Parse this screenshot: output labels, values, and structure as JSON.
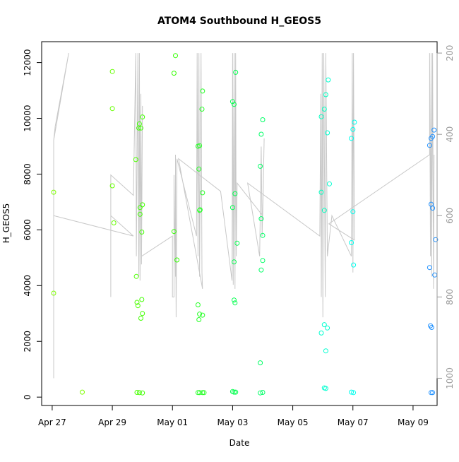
{
  "chart_data": {
    "type": "scatter",
    "title": "ATOM4 Southbound H_GEOS5",
    "xlabel": "Date",
    "ylabel": "H_GEOS5",
    "x_ticks": [
      "Apr 27",
      "Apr 29",
      "May 01",
      "May 03",
      "May 05",
      "May 07",
      "May 09"
    ],
    "y_ticks": [
      0,
      2000,
      4000,
      6000,
      8000,
      10000,
      12000
    ],
    "y2_ticks": [
      200,
      400,
      600,
      800,
      1000
    ],
    "xlim": [
      -0.35,
      12.8
    ],
    "ylim": [
      -300,
      12750
    ],
    "y2lim": [
      1067,
      172
    ],
    "grid": false,
    "colors": {
      "apr": "#7cfc00",
      "late_apr": "#00ff40",
      "may_mid": "#00ff7f",
      "may_late": "#00ffff",
      "may_end": "#1e90ff",
      "pressure_line": "#c8c8c8"
    },
    "points": [
      {
        "x": 0.05,
        "y": 7350,
        "c": "#7fff00"
      },
      {
        "x": 0.05,
        "y": 3730,
        "c": "#7fff00"
      },
      {
        "x": 1.0,
        "y": 180,
        "c": "#7fff00"
      },
      {
        "x": 2.0,
        "y": 11680,
        "c": "#66ff00"
      },
      {
        "x": 2.0,
        "y": 10350,
        "c": "#66ff00"
      },
      {
        "x": 2.0,
        "y": 7580,
        "c": "#66ff00"
      },
      {
        "x": 2.05,
        "y": 6250,
        "c": "#66ff00"
      },
      {
        "x": 2.78,
        "y": 8520,
        "c": "#4dff00"
      },
      {
        "x": 2.8,
        "y": 4330,
        "c": "#4dff00"
      },
      {
        "x": 2.82,
        "y": 3400,
        "c": "#4dff00"
      },
      {
        "x": 2.85,
        "y": 3280,
        "c": "#4dff00"
      },
      {
        "x": 2.82,
        "y": 170,
        "c": "#4dff00"
      },
      {
        "x": 2.88,
        "y": 9650,
        "c": "#40ff00"
      },
      {
        "x": 2.9,
        "y": 9800,
        "c": "#40ff00"
      },
      {
        "x": 2.95,
        "y": 9650,
        "c": "#40ff00"
      },
      {
        "x": 2.92,
        "y": 6800,
        "c": "#40ff00"
      },
      {
        "x": 2.92,
        "y": 6560,
        "c": "#40ff00"
      },
      {
        "x": 2.95,
        "y": 2830,
        "c": "#40ff00"
      },
      {
        "x": 2.9,
        "y": 160,
        "c": "#40ff00"
      },
      {
        "x": 3.0,
        "y": 10050,
        "c": "#40ff00"
      },
      {
        "x": 3.0,
        "y": 6900,
        "c": "#40ff00"
      },
      {
        "x": 2.98,
        "y": 5920,
        "c": "#40ff00"
      },
      {
        "x": 2.98,
        "y": 3500,
        "c": "#40ff00"
      },
      {
        "x": 3.0,
        "y": 3000,
        "c": "#40ff00"
      },
      {
        "x": 3.0,
        "y": 150,
        "c": "#40ff00"
      },
      {
        "x": 4.1,
        "y": 12250,
        "c": "#33ff00"
      },
      {
        "x": 4.05,
        "y": 11620,
        "c": "#33ff00"
      },
      {
        "x": 4.05,
        "y": 5940,
        "c": "#33ff00"
      },
      {
        "x": 4.15,
        "y": 4920,
        "c": "#33ff00"
      },
      {
        "x": 4.85,
        "y": 9000,
        "c": "#26ff26"
      },
      {
        "x": 4.9,
        "y": 9020,
        "c": "#26ff26"
      },
      {
        "x": 4.88,
        "y": 8180,
        "c": "#26ff26"
      },
      {
        "x": 4.9,
        "y": 6700,
        "c": "#26ff26"
      },
      {
        "x": 4.92,
        "y": 6720,
        "c": "#26ff26"
      },
      {
        "x": 4.85,
        "y": 3310,
        "c": "#26ff26"
      },
      {
        "x": 4.88,
        "y": 2780,
        "c": "#26ff26"
      },
      {
        "x": 4.9,
        "y": 2980,
        "c": "#26ff26"
      },
      {
        "x": 4.85,
        "y": 160,
        "c": "#26ff26"
      },
      {
        "x": 4.9,
        "y": 160,
        "c": "#26ff26"
      },
      {
        "x": 5.0,
        "y": 10980,
        "c": "#26ff26"
      },
      {
        "x": 4.98,
        "y": 10330,
        "c": "#26ff26"
      },
      {
        "x": 5.0,
        "y": 7330,
        "c": "#26ff26"
      },
      {
        "x": 5.0,
        "y": 2940,
        "c": "#26ff26"
      },
      {
        "x": 5.0,
        "y": 160,
        "c": "#26ff26"
      },
      {
        "x": 5.05,
        "y": 160,
        "c": "#26ff26"
      },
      {
        "x": 6.0,
        "y": 10600,
        "c": "#00ff4d"
      },
      {
        "x": 6.05,
        "y": 10500,
        "c": "#00ff4d"
      },
      {
        "x": 6.1,
        "y": 11650,
        "c": "#00ff4d"
      },
      {
        "x": 6.08,
        "y": 7300,
        "c": "#00ff4d"
      },
      {
        "x": 6.0,
        "y": 6800,
        "c": "#00ff4d"
      },
      {
        "x": 6.15,
        "y": 5520,
        "c": "#00ff4d"
      },
      {
        "x": 6.05,
        "y": 4850,
        "c": "#00ff4d"
      },
      {
        "x": 6.05,
        "y": 3480,
        "c": "#00ff4d"
      },
      {
        "x": 6.08,
        "y": 3380,
        "c": "#00ff4d"
      },
      {
        "x": 6.0,
        "y": 200,
        "c": "#00ff4d"
      },
      {
        "x": 6.05,
        "y": 180,
        "c": "#00ff4d"
      },
      {
        "x": 6.1,
        "y": 180,
        "c": "#00ff4d"
      },
      {
        "x": 6.95,
        "y": 9430,
        "c": "#00ff66"
      },
      {
        "x": 7.0,
        "y": 9950,
        "c": "#00ff66"
      },
      {
        "x": 6.92,
        "y": 8280,
        "c": "#00ff66"
      },
      {
        "x": 6.95,
        "y": 6400,
        "c": "#00ff66"
      },
      {
        "x": 7.0,
        "y": 5800,
        "c": "#00ff66"
      },
      {
        "x": 7.0,
        "y": 4900,
        "c": "#00ff66"
      },
      {
        "x": 6.95,
        "y": 4560,
        "c": "#00ff66"
      },
      {
        "x": 6.92,
        "y": 1230,
        "c": "#00ff66"
      },
      {
        "x": 6.92,
        "y": 150,
        "c": "#00ff66"
      },
      {
        "x": 7.0,
        "y": 170,
        "c": "#00ff66"
      },
      {
        "x": 8.95,
        "y": 10060,
        "c": "#00ffc0"
      },
      {
        "x": 9.05,
        "y": 10330,
        "c": "#00ffc0"
      },
      {
        "x": 9.1,
        "y": 10850,
        "c": "#00ffc0"
      },
      {
        "x": 9.18,
        "y": 11380,
        "c": "#00ffd0"
      },
      {
        "x": 9.15,
        "y": 9480,
        "c": "#00ffd0"
      },
      {
        "x": 8.95,
        "y": 7350,
        "c": "#00ffc0"
      },
      {
        "x": 9.22,
        "y": 7650,
        "c": "#00ffd0"
      },
      {
        "x": 9.05,
        "y": 6700,
        "c": "#00ffc0"
      },
      {
        "x": 9.05,
        "y": 2600,
        "c": "#00ffd0"
      },
      {
        "x": 8.95,
        "y": 2300,
        "c": "#00ffd0"
      },
      {
        "x": 9.15,
        "y": 2480,
        "c": "#00ffd0"
      },
      {
        "x": 9.1,
        "y": 1660,
        "c": "#00ffd0"
      },
      {
        "x": 9.05,
        "y": 330,
        "c": "#00ffd0"
      },
      {
        "x": 9.1,
        "y": 310,
        "c": "#00ffd0"
      },
      {
        "x": 9.95,
        "y": 9280,
        "c": "#00ffee"
      },
      {
        "x": 10.0,
        "y": 9600,
        "c": "#00ffee"
      },
      {
        "x": 10.05,
        "y": 9860,
        "c": "#00ffee"
      },
      {
        "x": 10.0,
        "y": 6650,
        "c": "#00ffee"
      },
      {
        "x": 9.95,
        "y": 5540,
        "c": "#00ffee"
      },
      {
        "x": 10.02,
        "y": 4740,
        "c": "#00ffee"
      },
      {
        "x": 9.95,
        "y": 180,
        "c": "#00ffee"
      },
      {
        "x": 10.02,
        "y": 160,
        "c": "#00ffee"
      },
      {
        "x": 12.55,
        "y": 9030,
        "c": "#1e90ff"
      },
      {
        "x": 12.6,
        "y": 9280,
        "c": "#1e90ff"
      },
      {
        "x": 12.65,
        "y": 9350,
        "c": "#1e90ff"
      },
      {
        "x": 12.7,
        "y": 9580,
        "c": "#1e90ff"
      },
      {
        "x": 12.6,
        "y": 6920,
        "c": "#1e90ff"
      },
      {
        "x": 12.65,
        "y": 6780,
        "c": "#1e90ff"
      },
      {
        "x": 12.75,
        "y": 5650,
        "c": "#1e90ff"
      },
      {
        "x": 12.55,
        "y": 4650,
        "c": "#1e90ff"
      },
      {
        "x": 12.72,
        "y": 4380,
        "c": "#1e90ff"
      },
      {
        "x": 12.58,
        "y": 2560,
        "c": "#1e90ff"
      },
      {
        "x": 12.62,
        "y": 2500,
        "c": "#1e90ff"
      },
      {
        "x": 12.6,
        "y": 160,
        "c": "#1e90ff"
      },
      {
        "x": 12.65,
        "y": 160,
        "c": "#1e90ff"
      }
    ],
    "pressure_path": [
      [
        0.05,
        950
      ],
      [
        0.05,
        415
      ],
      [
        0.1,
        380
      ],
      [
        0.55,
        200
      ],
      [
        0.05,
        415
      ],
      [
        0.05,
        1000
      ],
      [
        0.05,
        600
      ],
      [
        2.7,
        650
      ],
      [
        1.95,
        600
      ],
      [
        1.95,
        800
      ],
      [
        1.95,
        500
      ],
      [
        2.7,
        550
      ],
      [
        2.78,
        200
      ],
      [
        2.8,
        700
      ],
      [
        2.85,
        200
      ],
      [
        2.88,
        750
      ],
      [
        2.9,
        200
      ],
      [
        2.92,
        760
      ],
      [
        2.95,
        300
      ],
      [
        2.97,
        720
      ],
      [
        3.0,
        330
      ],
      [
        2.97,
        700
      ],
      [
        4.0,
        650
      ],
      [
        4.0,
        800
      ],
      [
        4.05,
        800
      ],
      [
        4.05,
        500
      ],
      [
        4.1,
        750
      ],
      [
        4.1,
        450
      ],
      [
        4.12,
        850
      ],
      [
        4.15,
        460
      ],
      [
        4.8,
        650
      ],
      [
        4.82,
        200
      ],
      [
        4.85,
        700
      ],
      [
        4.88,
        200
      ],
      [
        4.9,
        750
      ],
      [
        4.95,
        200
      ],
      [
        4.98,
        740
      ],
      [
        5.0,
        780
      ],
      [
        4.2,
        460
      ],
      [
        5.6,
        540
      ],
      [
        5.98,
        760
      ],
      [
        6.0,
        200
      ],
      [
        6.02,
        770
      ],
      [
        6.05,
        200
      ],
      [
        6.08,
        780
      ],
      [
        6.1,
        200
      ],
      [
        6.12,
        700
      ],
      [
        6.15,
        520
      ],
      [
        7.0,
        600
      ],
      [
        7.05,
        410
      ],
      [
        6.98,
        650
      ],
      [
        6.95,
        430
      ],
      [
        6.9,
        700
      ],
      [
        6.5,
        520
      ],
      [
        8.9,
        650
      ],
      [
        8.93,
        300
      ],
      [
        8.95,
        800
      ],
      [
        8.98,
        200
      ],
      [
        9.0,
        850
      ],
      [
        9.03,
        200
      ],
      [
        9.08,
        800
      ],
      [
        9.1,
        200
      ],
      [
        9.15,
        700
      ],
      [
        9.3,
        600
      ],
      [
        9.95,
        700
      ],
      [
        9.98,
        200
      ],
      [
        10.0,
        740
      ],
      [
        10.02,
        200
      ],
      [
        10.05,
        660
      ],
      [
        9.2,
        620
      ],
      [
        12.55,
        450
      ],
      [
        12.55,
        200
      ],
      [
        12.58,
        700
      ],
      [
        12.6,
        200
      ],
      [
        12.62,
        750
      ],
      [
        12.65,
        200
      ],
      [
        12.68,
        780
      ],
      [
        12.7,
        450
      ]
    ]
  }
}
